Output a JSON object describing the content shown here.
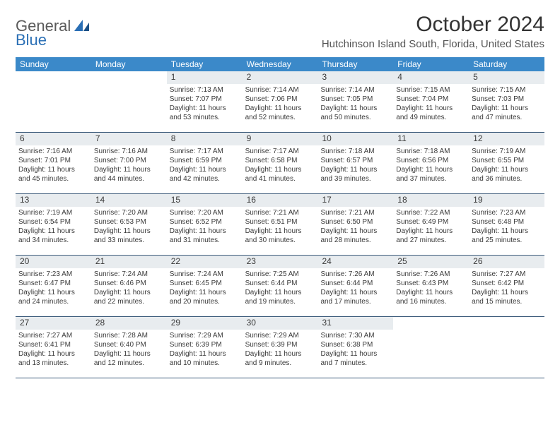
{
  "logo": {
    "word1": "General",
    "word2": "Blue"
  },
  "title": "October 2024",
  "location": "Hutchinson Island South, Florida, United States",
  "colors": {
    "header_bg": "#3b89c9",
    "header_text": "#ffffff",
    "daynum_bg": "#e8ecef",
    "week_border": "#3b5a7a",
    "logo_blue": "#2a6fb5",
    "logo_gray": "#5a5a5a",
    "text": "#333333"
  },
  "dayHeaders": [
    "Sunday",
    "Monday",
    "Tuesday",
    "Wednesday",
    "Thursday",
    "Friday",
    "Saturday"
  ],
  "weeks": [
    [
      {
        "blank": true
      },
      {
        "blank": true
      },
      {
        "num": "1",
        "sunrise": "7:13 AM",
        "sunset": "7:07 PM",
        "daylight": "11 hours and 53 minutes."
      },
      {
        "num": "2",
        "sunrise": "7:14 AM",
        "sunset": "7:06 PM",
        "daylight": "11 hours and 52 minutes."
      },
      {
        "num": "3",
        "sunrise": "7:14 AM",
        "sunset": "7:05 PM",
        "daylight": "11 hours and 50 minutes."
      },
      {
        "num": "4",
        "sunrise": "7:15 AM",
        "sunset": "7:04 PM",
        "daylight": "11 hours and 49 minutes."
      },
      {
        "num": "5",
        "sunrise": "7:15 AM",
        "sunset": "7:03 PM",
        "daylight": "11 hours and 47 minutes."
      }
    ],
    [
      {
        "num": "6",
        "sunrise": "7:16 AM",
        "sunset": "7:01 PM",
        "daylight": "11 hours and 45 minutes."
      },
      {
        "num": "7",
        "sunrise": "7:16 AM",
        "sunset": "7:00 PM",
        "daylight": "11 hours and 44 minutes."
      },
      {
        "num": "8",
        "sunrise": "7:17 AM",
        "sunset": "6:59 PM",
        "daylight": "11 hours and 42 minutes."
      },
      {
        "num": "9",
        "sunrise": "7:17 AM",
        "sunset": "6:58 PM",
        "daylight": "11 hours and 41 minutes."
      },
      {
        "num": "10",
        "sunrise": "7:18 AM",
        "sunset": "6:57 PM",
        "daylight": "11 hours and 39 minutes."
      },
      {
        "num": "11",
        "sunrise": "7:18 AM",
        "sunset": "6:56 PM",
        "daylight": "11 hours and 37 minutes."
      },
      {
        "num": "12",
        "sunrise": "7:19 AM",
        "sunset": "6:55 PM",
        "daylight": "11 hours and 36 minutes."
      }
    ],
    [
      {
        "num": "13",
        "sunrise": "7:19 AM",
        "sunset": "6:54 PM",
        "daylight": "11 hours and 34 minutes."
      },
      {
        "num": "14",
        "sunrise": "7:20 AM",
        "sunset": "6:53 PM",
        "daylight": "11 hours and 33 minutes."
      },
      {
        "num": "15",
        "sunrise": "7:20 AM",
        "sunset": "6:52 PM",
        "daylight": "11 hours and 31 minutes."
      },
      {
        "num": "16",
        "sunrise": "7:21 AM",
        "sunset": "6:51 PM",
        "daylight": "11 hours and 30 minutes."
      },
      {
        "num": "17",
        "sunrise": "7:21 AM",
        "sunset": "6:50 PM",
        "daylight": "11 hours and 28 minutes."
      },
      {
        "num": "18",
        "sunrise": "7:22 AM",
        "sunset": "6:49 PM",
        "daylight": "11 hours and 27 minutes."
      },
      {
        "num": "19",
        "sunrise": "7:23 AM",
        "sunset": "6:48 PM",
        "daylight": "11 hours and 25 minutes."
      }
    ],
    [
      {
        "num": "20",
        "sunrise": "7:23 AM",
        "sunset": "6:47 PM",
        "daylight": "11 hours and 24 minutes."
      },
      {
        "num": "21",
        "sunrise": "7:24 AM",
        "sunset": "6:46 PM",
        "daylight": "11 hours and 22 minutes."
      },
      {
        "num": "22",
        "sunrise": "7:24 AM",
        "sunset": "6:45 PM",
        "daylight": "11 hours and 20 minutes."
      },
      {
        "num": "23",
        "sunrise": "7:25 AM",
        "sunset": "6:44 PM",
        "daylight": "11 hours and 19 minutes."
      },
      {
        "num": "24",
        "sunrise": "7:26 AM",
        "sunset": "6:44 PM",
        "daylight": "11 hours and 17 minutes."
      },
      {
        "num": "25",
        "sunrise": "7:26 AM",
        "sunset": "6:43 PM",
        "daylight": "11 hours and 16 minutes."
      },
      {
        "num": "26",
        "sunrise": "7:27 AM",
        "sunset": "6:42 PM",
        "daylight": "11 hours and 15 minutes."
      }
    ],
    [
      {
        "num": "27",
        "sunrise": "7:27 AM",
        "sunset": "6:41 PM",
        "daylight": "11 hours and 13 minutes."
      },
      {
        "num": "28",
        "sunrise": "7:28 AM",
        "sunset": "6:40 PM",
        "daylight": "11 hours and 12 minutes."
      },
      {
        "num": "29",
        "sunrise": "7:29 AM",
        "sunset": "6:39 PM",
        "daylight": "11 hours and 10 minutes."
      },
      {
        "num": "30",
        "sunrise": "7:29 AM",
        "sunset": "6:39 PM",
        "daylight": "11 hours and 9 minutes."
      },
      {
        "num": "31",
        "sunrise": "7:30 AM",
        "sunset": "6:38 PM",
        "daylight": "11 hours and 7 minutes."
      },
      {
        "blank": true
      },
      {
        "blank": true
      }
    ]
  ],
  "labels": {
    "sunrise": "Sunrise: ",
    "sunset": "Sunset: ",
    "daylight": "Daylight: "
  }
}
